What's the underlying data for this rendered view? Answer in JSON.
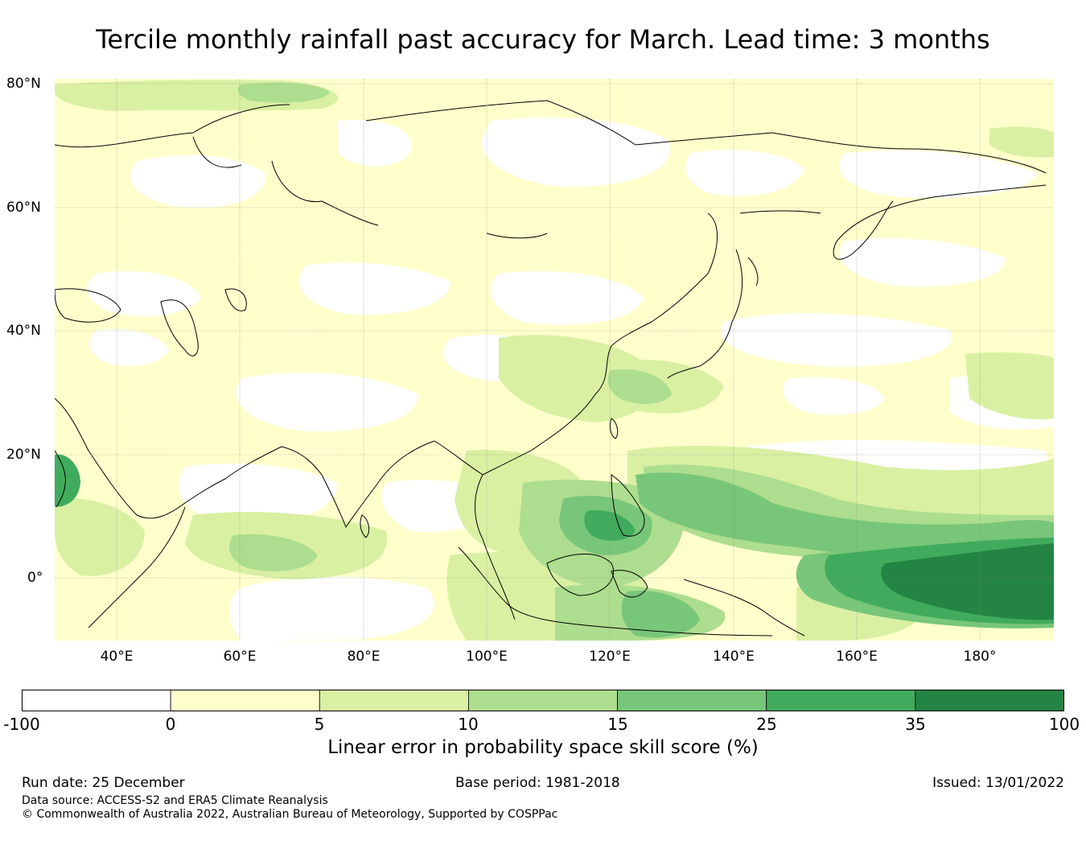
{
  "title": "Tercile monthly rainfall past accuracy for March. Lead time: 3 months",
  "map": {
    "lat_labels": [
      "80°N",
      "60°N",
      "40°N",
      "20°N",
      "0°"
    ],
    "lon_labels": [
      "40°E",
      "60°E",
      "80°E",
      "100°E",
      "120°E",
      "140°E",
      "160°E",
      "180°"
    ],
    "extent": {
      "lon_min": 30,
      "lon_max": 192,
      "lat_min": -10,
      "lat_max": 80
    },
    "ocean_color": "#ffffff",
    "gridline_color": "#888888"
  },
  "colorbar": {
    "label": "Linear error in probability space skill score (%)",
    "ticks": [
      "-100",
      "0",
      "5",
      "10",
      "15",
      "25",
      "35",
      "100"
    ],
    "colors": [
      "#ffffff",
      "#ffffcc",
      "#d9f0a3",
      "#addd8e",
      "#78c679",
      "#41ab5d",
      "#238443"
    ]
  },
  "footer": {
    "run_date": "Run date: 25 December",
    "base_period": "Base period: 1981-2018",
    "issued": "Issued: 13/01/2022",
    "data_source": "Data source: ACCESS-S2 and ERA5 Climate Reanalysis",
    "copyright": "© Commonwealth of Australia 2022, Australian Bureau of Meteorology, Supported by COSPPac"
  }
}
